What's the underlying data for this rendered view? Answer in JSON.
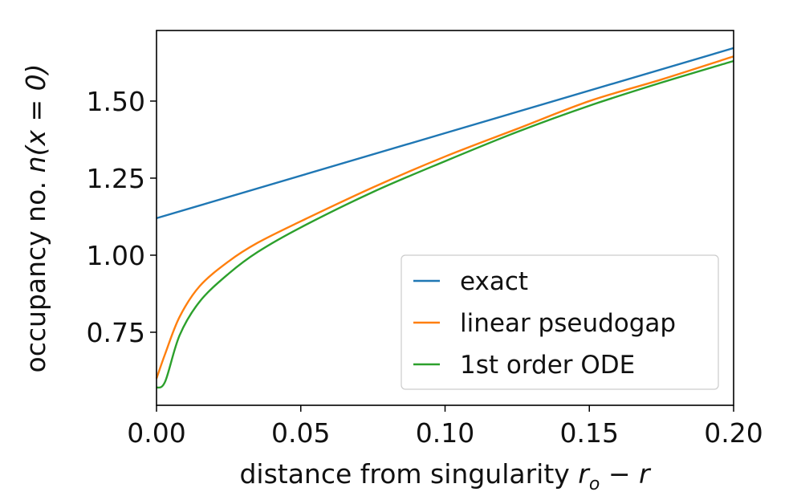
{
  "chart_data": {
    "type": "line",
    "title": "",
    "xlabel": "distance from singularity r_o − r",
    "xlabel_main": "distance from singularity ",
    "xlabel_math_a": "r",
    "xlabel_math_sub": "o",
    "xlabel_math_b": " − r",
    "ylabel_main": "occupancy no. ",
    "ylabel_math": "n(x = 0)",
    "xlim": [
      0,
      0.2
    ],
    "ylim": [
      0.513,
      1.729
    ],
    "xticks": [
      0,
      0.05,
      0.1,
      0.15,
      0.2
    ],
    "xtick_labels": [
      "0.00",
      "0.05",
      "0.10",
      "0.15",
      "0.20"
    ],
    "yticks": [
      0.75,
      1.0,
      1.25,
      1.5
    ],
    "ytick_labels": [
      "0.75",
      "1.00",
      "1.25",
      "1.50"
    ],
    "grid": false,
    "legend_position": "lower-right",
    "series": [
      {
        "name": "exact",
        "color": "#1f77b4",
        "x": [
          0,
          0.2
        ],
        "y": [
          1.12,
          1.672
        ]
      },
      {
        "name": "linear pseudogap",
        "color": "#ff7f0e",
        "x": [
          0,
          0.003,
          0.008,
          0.015,
          0.025,
          0.035,
          0.05,
          0.075,
          0.1,
          0.125,
          0.15,
          0.175,
          0.2
        ],
        "y": [
          0.6,
          0.68,
          0.8,
          0.9,
          0.98,
          1.04,
          1.11,
          1.22,
          1.32,
          1.41,
          1.5,
          1.57,
          1.645
        ]
      },
      {
        "name": "1st order ODE",
        "color": "#2ca02c",
        "x": [
          0,
          0.003,
          0.008,
          0.015,
          0.025,
          0.035,
          0.05,
          0.075,
          0.1,
          0.125,
          0.15,
          0.175,
          0.2
        ],
        "y": [
          0.57,
          0.59,
          0.74,
          0.85,
          0.94,
          1.01,
          1.09,
          1.205,
          1.305,
          1.4,
          1.485,
          1.56,
          1.63
        ]
      }
    ]
  }
}
